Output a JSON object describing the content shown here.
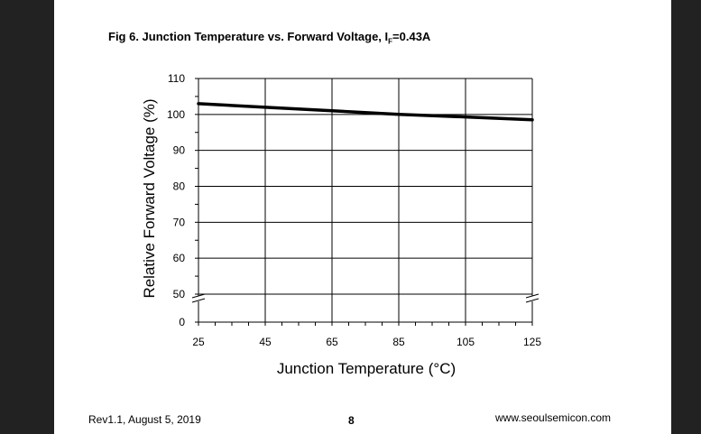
{
  "title": {
    "prefix": "Fig 6. Junction Temperature vs. Forward Voltage, I",
    "subscript": "F",
    "suffix": "=0.43A"
  },
  "footer": {
    "revision": "Rev1.1, August 5, 2019",
    "page_number": "8",
    "website": "www.seoulsemicon.com"
  },
  "chart_data": {
    "type": "line",
    "xlabel": "Junction Temperature (°C)",
    "ylabel": "Relative Forward Voltage (%)",
    "x_ticks": [
      "25",
      "45",
      "65",
      "85",
      "105",
      "125"
    ],
    "y_ticks": [
      "0",
      "50",
      "60",
      "70",
      "80",
      "90",
      "100",
      "110"
    ],
    "xlim": [
      25,
      125
    ],
    "ylim": [
      50,
      110
    ],
    "y_axis_break": "between 0 and 50",
    "grid": true,
    "series": [
      {
        "x": [
          25,
          45,
          65,
          85,
          105,
          125
        ],
        "values": [
          103,
          102,
          101,
          100,
          99.3,
          98.5
        ]
      }
    ],
    "line_color": "#000000"
  }
}
